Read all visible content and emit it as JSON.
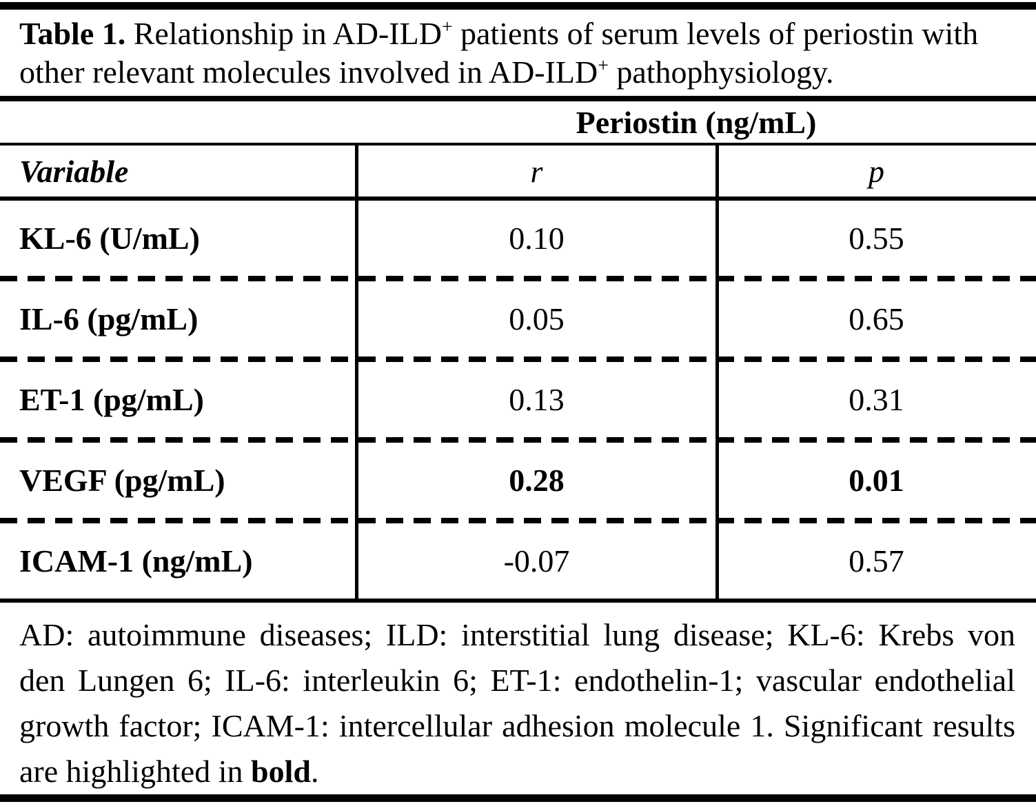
{
  "title": {
    "label": "Table 1.",
    "part_after_label": " Relationship in AD-ILD",
    "sup1": "+",
    "part2": " patients of serum levels of periostin with other relevant molecules involved in AD-ILD",
    "sup2": "+",
    "part3": " pathophysiology."
  },
  "table": {
    "spanning_header": "Periostin (ng/mL)",
    "columns": [
      "Variable",
      "r",
      "p"
    ],
    "rows": [
      {
        "variable": "KL-6 (U/mL)",
        "r": "0.10",
        "p": "0.55",
        "significant": false
      },
      {
        "variable": "IL-6 (pg/mL)",
        "r": "0.05",
        "p": "0.65",
        "significant": false
      },
      {
        "variable": "ET-1 (pg/mL)",
        "r": "0.13",
        "p": "0.31",
        "significant": false
      },
      {
        "variable": "VEGF (pg/mL)",
        "r": "0.28",
        "p": "0.01",
        "significant": true
      },
      {
        "variable": "ICAM-1 (ng/mL)",
        "r": "-0.07",
        "p": "0.57",
        "significant": false
      }
    ]
  },
  "footnote": {
    "text_before_bold": "AD: autoimmune diseases; ILD: interstitial lung disease; KL-6: Krebs von den Lungen 6; IL-6: interleukin 6; ET-1: endothelin-1; vascular endothelial growth factor; ICAM-1: intercellular adhesion molecule 1. Significant results are highlighted in ",
    "bold_word": "bold",
    "text_after_bold": "."
  },
  "colors": {
    "text": "#000000",
    "background": "#ffffff",
    "rule": "#000000"
  }
}
